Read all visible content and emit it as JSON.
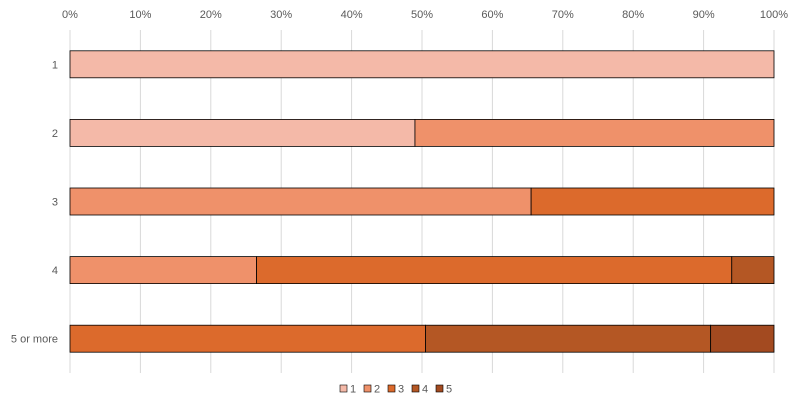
{
  "chart_data": {
    "type": "bar",
    "orientation": "horizontal",
    "stacked": "percent",
    "title": "",
    "xlabel": "",
    "ylabel": "",
    "xlim": [
      0,
      100
    ],
    "x_ticks": [
      "0%",
      "10%",
      "20%",
      "30%",
      "40%",
      "50%",
      "60%",
      "70%",
      "80%",
      "90%",
      "100%"
    ],
    "x_axis_position": "top",
    "grid": true,
    "legend": "bottom",
    "categories": [
      "1",
      "2",
      "3",
      "4",
      "5 or more"
    ],
    "series": [
      {
        "name": "1",
        "color": "#F4B9A8",
        "values": [
          100,
          49,
          0,
          0,
          0
        ]
      },
      {
        "name": "2",
        "color": "#EF916A",
        "values": [
          0,
          51,
          65.5,
          26.5,
          0
        ]
      },
      {
        "name": "3",
        "color": "#DC6A2C",
        "values": [
          0,
          0,
          34.5,
          67.5,
          50.5
        ]
      },
      {
        "name": "4",
        "color": "#B45724",
        "values": [
          0,
          0,
          0,
          6,
          40.5
        ]
      },
      {
        "name": "5",
        "color": "#A34A20",
        "values": [
          0,
          0,
          0,
          0,
          9
        ]
      }
    ]
  }
}
